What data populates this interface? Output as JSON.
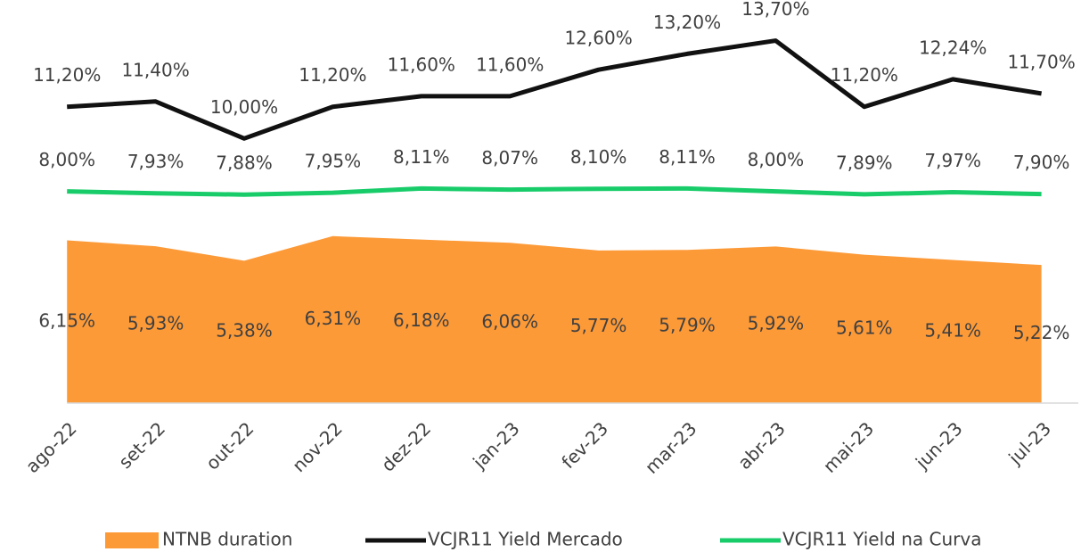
{
  "chart_data": {
    "type": "combo",
    "categories": [
      "ago-22",
      "set-22",
      "out-22",
      "nov-22",
      "dez-22",
      "jan-23",
      "fev-23",
      "mar-23",
      "abr-23",
      "mai-23",
      "jun-23",
      "jul-23"
    ],
    "series": [
      {
        "name": "NTNB duration",
        "kind": "area",
        "color": "#fd9a38",
        "values": [
          6.15,
          5.93,
          5.38,
          6.31,
          6.18,
          6.06,
          5.77,
          5.79,
          5.92,
          5.61,
          5.41,
          5.22
        ],
        "value_labels": [
          "6,15%",
          "5,93%",
          "5,38%",
          "6,31%",
          "6,18%",
          "6,06%",
          "5,77%",
          "5,79%",
          "5,92%",
          "5,61%",
          "5,41%",
          "5,22%"
        ]
      },
      {
        "name": "VCJR11 Yield Mercado",
        "kind": "line",
        "color": "#111111",
        "values": [
          11.2,
          11.4,
          10.0,
          11.2,
          11.6,
          11.6,
          12.6,
          13.2,
          13.7,
          11.2,
          12.24,
          11.7
        ],
        "value_labels": [
          "11,20%",
          "11,40%",
          "10,00%",
          "11,20%",
          "11,60%",
          "11,60%",
          "12,60%",
          "13,20%",
          "13,70%",
          "11,20%",
          "12,24%",
          "11,70%"
        ]
      },
      {
        "name": "VCJR11 Yield na Curva",
        "kind": "line",
        "color": "#18cc6a",
        "values": [
          8.0,
          7.93,
          7.88,
          7.95,
          8.11,
          8.07,
          8.1,
          8.11,
          8.0,
          7.89,
          7.97,
          7.9
        ],
        "value_labels": [
          "8,00%",
          "7,93%",
          "7,88%",
          "7,95%",
          "8,11%",
          "8,07%",
          "8,10%",
          "8,11%",
          "8,00%",
          "7,89%",
          "7,97%",
          "7,90%"
        ]
      }
    ],
    "ylim": [
      0,
      15
    ],
    "legend": "bottom"
  }
}
